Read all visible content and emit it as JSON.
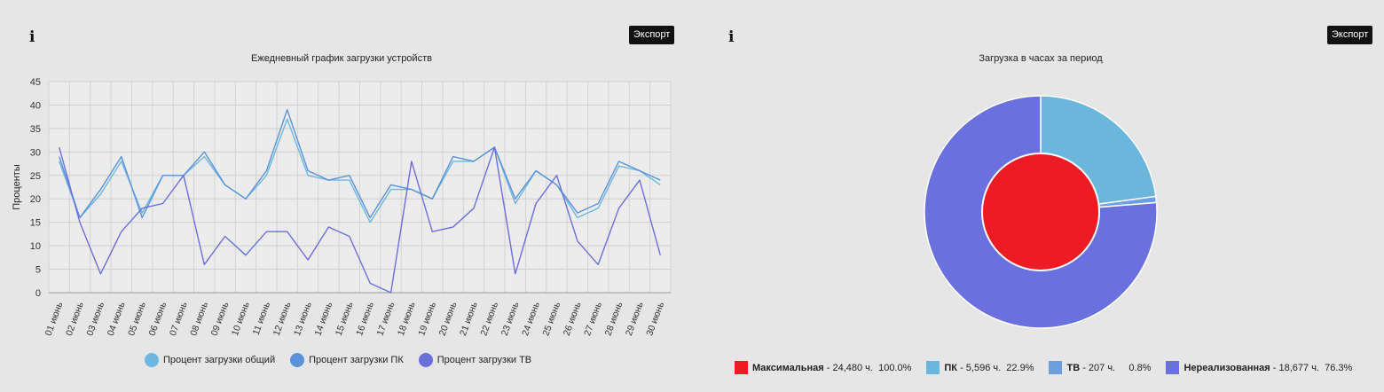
{
  "export_label": "Экспорт",
  "info_glyph": "i",
  "chart_data": [
    {
      "type": "line",
      "title": "Ежедневный график загрузки устройств",
      "ylabel": "Проценты",
      "xlabel": "",
      "ylim": [
        0,
        45
      ],
      "yticks": [
        0,
        5,
        10,
        15,
        20,
        25,
        30,
        35,
        40,
        45
      ],
      "grid": true,
      "legend_position": "bottom",
      "categories": [
        "01 июнь",
        "02 июнь",
        "03 июнь",
        "04 июнь",
        "05 июнь",
        "06 июнь",
        "07 июнь",
        "08 июнь",
        "09 июнь",
        "10 июнь",
        "11 июнь",
        "12 июнь",
        "13 июнь",
        "14 июнь",
        "15 июнь",
        "16 июнь",
        "17 июнь",
        "18 июнь",
        "19 июнь",
        "20 июнь",
        "21 июнь",
        "22 июнь",
        "23 июнь",
        "24 июнь",
        "25 июнь",
        "26 июнь",
        "27 июнь",
        "28 июнь",
        "29 июнь",
        "30 июнь"
      ],
      "series": [
        {
          "name": "Процент загрузки общий",
          "color": "#6cb8e0",
          "values": [
            28,
            16,
            21,
            28,
            17,
            25,
            25,
            29,
            23,
            20,
            25,
            37,
            25,
            24,
            24,
            15,
            22,
            22,
            20,
            28,
            28,
            31,
            19,
            26,
            23,
            16,
            18,
            27,
            26,
            23
          ]
        },
        {
          "name": "Процент загрузки ПК",
          "color": "#5b92d9",
          "values": [
            29,
            16,
            22,
            29,
            16,
            25,
            25,
            30,
            23,
            20,
            26,
            39,
            26,
            24,
            25,
            16,
            23,
            22,
            20,
            29,
            28,
            31,
            20,
            26,
            23,
            17,
            19,
            28,
            26,
            24
          ]
        },
        {
          "name": "Процент загрузки ТВ",
          "color": "#6a6fdb",
          "values": [
            31,
            15,
            4,
            13,
            18,
            19,
            25,
            6,
            12,
            8,
            13,
            13,
            7,
            14,
            12,
            2,
            0,
            28,
            13,
            14,
            18,
            31,
            4,
            19,
            25,
            11,
            6,
            18,
            24,
            8
          ]
        }
      ]
    },
    {
      "type": "pie",
      "title": "Загрузка в часах за период",
      "legend_position": "bottom",
      "inner": [
        {
          "label": "Максимальная",
          "value": 24480,
          "percent": 100.0,
          "color": "#ed1c24"
        }
      ],
      "outer": [
        {
          "label": "ПК",
          "value": 5596,
          "percent": 22.9,
          "color": "#6bb6dd"
        },
        {
          "label": "ТВ",
          "value": 207,
          "percent": 0.8,
          "color": "#6c9fde"
        },
        {
          "label": "Нереализованная",
          "value": 18677,
          "percent": 76.3,
          "color": "#6a70dd"
        }
      ],
      "legend": [
        {
          "label": "Максимальная",
          "detail": " - 24,480 ч.  100.0%",
          "color": "#ed1c24"
        },
        {
          "label": "ПК",
          "detail": " - 5,596 ч.  22.9%",
          "color": "#6bb6dd"
        },
        {
          "label": "ТВ",
          "detail": " - 207 ч.     0.8%",
          "color": "#6c9fde"
        },
        {
          "label": "Нереализованная",
          "detail": " - 18,677 ч.  76.3%",
          "color": "#6a70dd"
        }
      ]
    }
  ]
}
